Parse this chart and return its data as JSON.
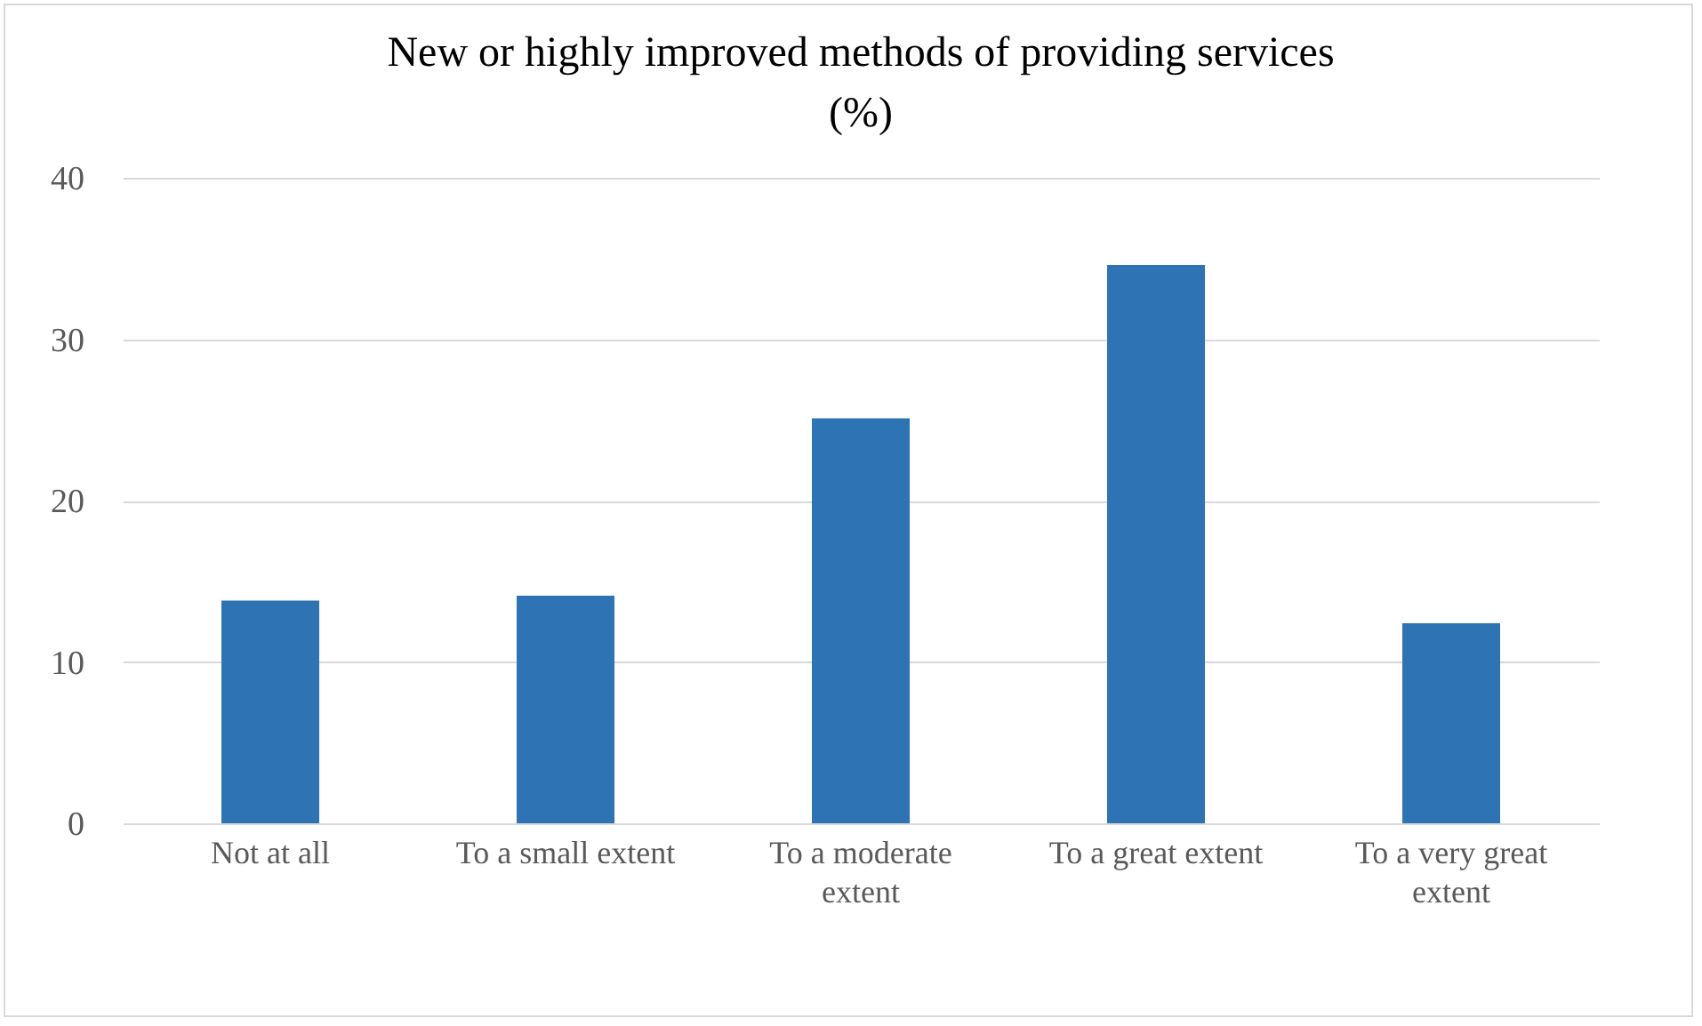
{
  "chart_data": {
    "type": "bar",
    "title": "New or highly improved methods of providing services (%)",
    "categories": [
      "Not at all",
      "To a small extent",
      "To a moderate extent",
      "To a great extent",
      "To a very great extent"
    ],
    "values": [
      13.8,
      14.1,
      25.1,
      34.6,
      12.4
    ],
    "color": "#2e74b5",
    "ylim": [
      0,
      40
    ],
    "yticks": [
      0,
      10,
      20,
      30,
      40
    ],
    "grid": "y"
  }
}
